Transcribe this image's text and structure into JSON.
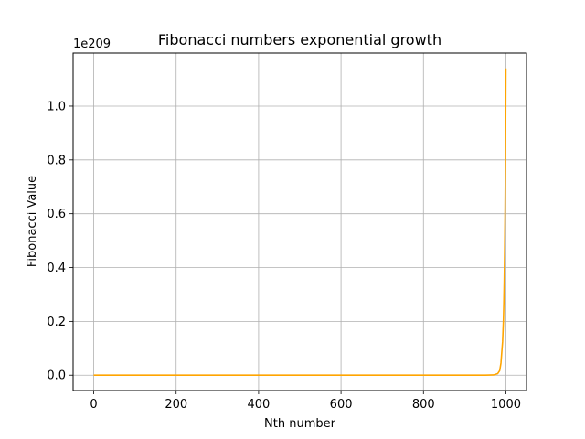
{
  "chart_data": {
    "type": "line",
    "title": "Fibonacci numbers exponential growth",
    "xlabel": "Nth number",
    "ylabel": "Fibonacci Value",
    "y_offset_label": "1e209",
    "xlim": [
      -50,
      1050
    ],
    "ylim": [
      -0.057,
      1.197
    ],
    "x_ticks": [
      0,
      200,
      400,
      600,
      800,
      1000
    ],
    "x_tick_labels": [
      "0",
      "200",
      "400",
      "600",
      "800",
      "1000"
    ],
    "y_ticks": [
      0.0,
      0.2,
      0.4,
      0.6,
      0.8,
      1.0
    ],
    "y_tick_labels": [
      "0.0",
      "0.2",
      "0.4",
      "0.6",
      "0.8",
      "1.0"
    ],
    "grid": true,
    "series": [
      {
        "color": "#ffa500",
        "x": [
          0,
          100,
          200,
          300,
          400,
          500,
          600,
          700,
          800,
          900,
          950,
          970,
          980,
          985,
          988,
          990,
          992,
          994,
          995,
          996,
          997,
          998,
          999,
          1000
        ],
        "y": [
          0,
          0,
          0,
          0,
          0,
          0,
          0,
          0,
          0,
          0,
          1e-05,
          0.0009,
          0.0058,
          0.0173,
          0.0451,
          0.0858,
          0.1245,
          0.2045,
          0.2681,
          0.3513,
          0.46,
          0.6023,
          0.7888,
          1.14
        ]
      }
    ]
  }
}
